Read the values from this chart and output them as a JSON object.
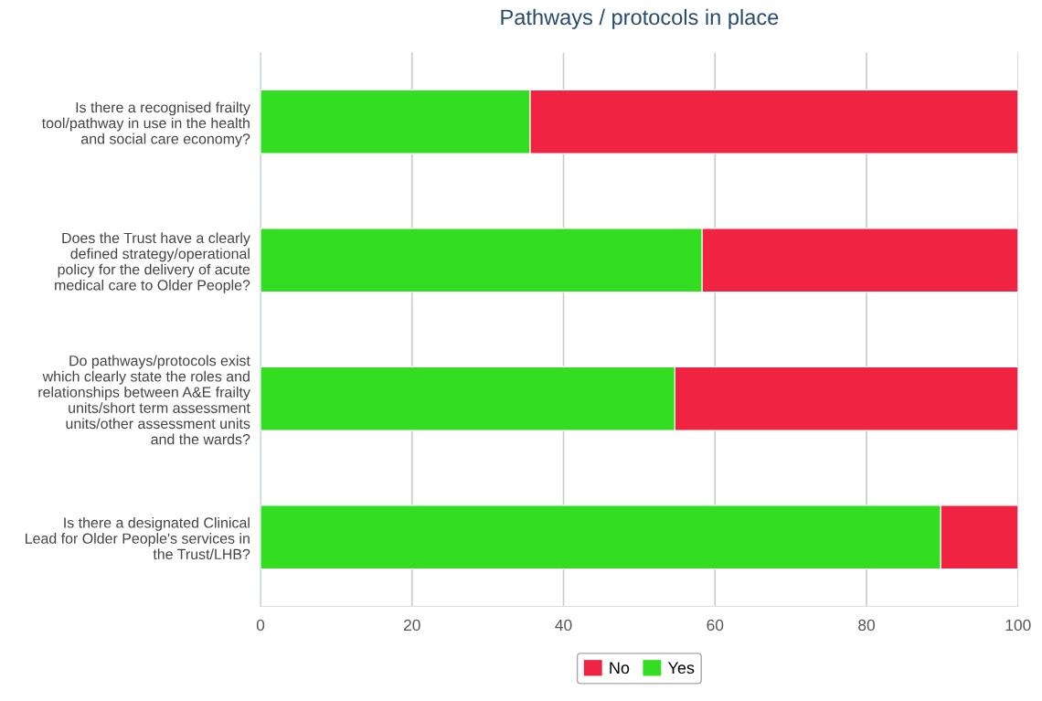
{
  "chart_data": {
    "type": "bar",
    "orientation": "horizontal",
    "stacked": true,
    "title": "Pathways / protocols in place",
    "categories": [
      "Is there a recognised frailty\ntool/pathway in use in the health\nand social care economy?",
      "Does the Trust have a clearly\ndefined strategy/operational\npolicy for the delivery of acute\nmedical care to Older People?",
      "Do pathways/protocols exist\nwhich clearly state the roles and\nrelationships between A&E frailty\nunits/short term assessment\nunits/other assessment units\nand the wards?",
      "Is there a designated Clinical\nLead for Older People's services in\nthe Trust/LHB?"
    ],
    "series": [
      {
        "name": "Yes",
        "color": "#33dd22",
        "values": [
          35.6,
          58.3,
          54.7,
          89.8
        ]
      },
      {
        "name": "No",
        "color": "#f02442",
        "values": [
          64.4,
          41.7,
          45.3,
          10.2
        ]
      }
    ],
    "xlim": [
      0,
      100
    ],
    "xticks": [
      0,
      20,
      40,
      60,
      80,
      100
    ],
    "grid": "x",
    "legend": "bottom"
  }
}
